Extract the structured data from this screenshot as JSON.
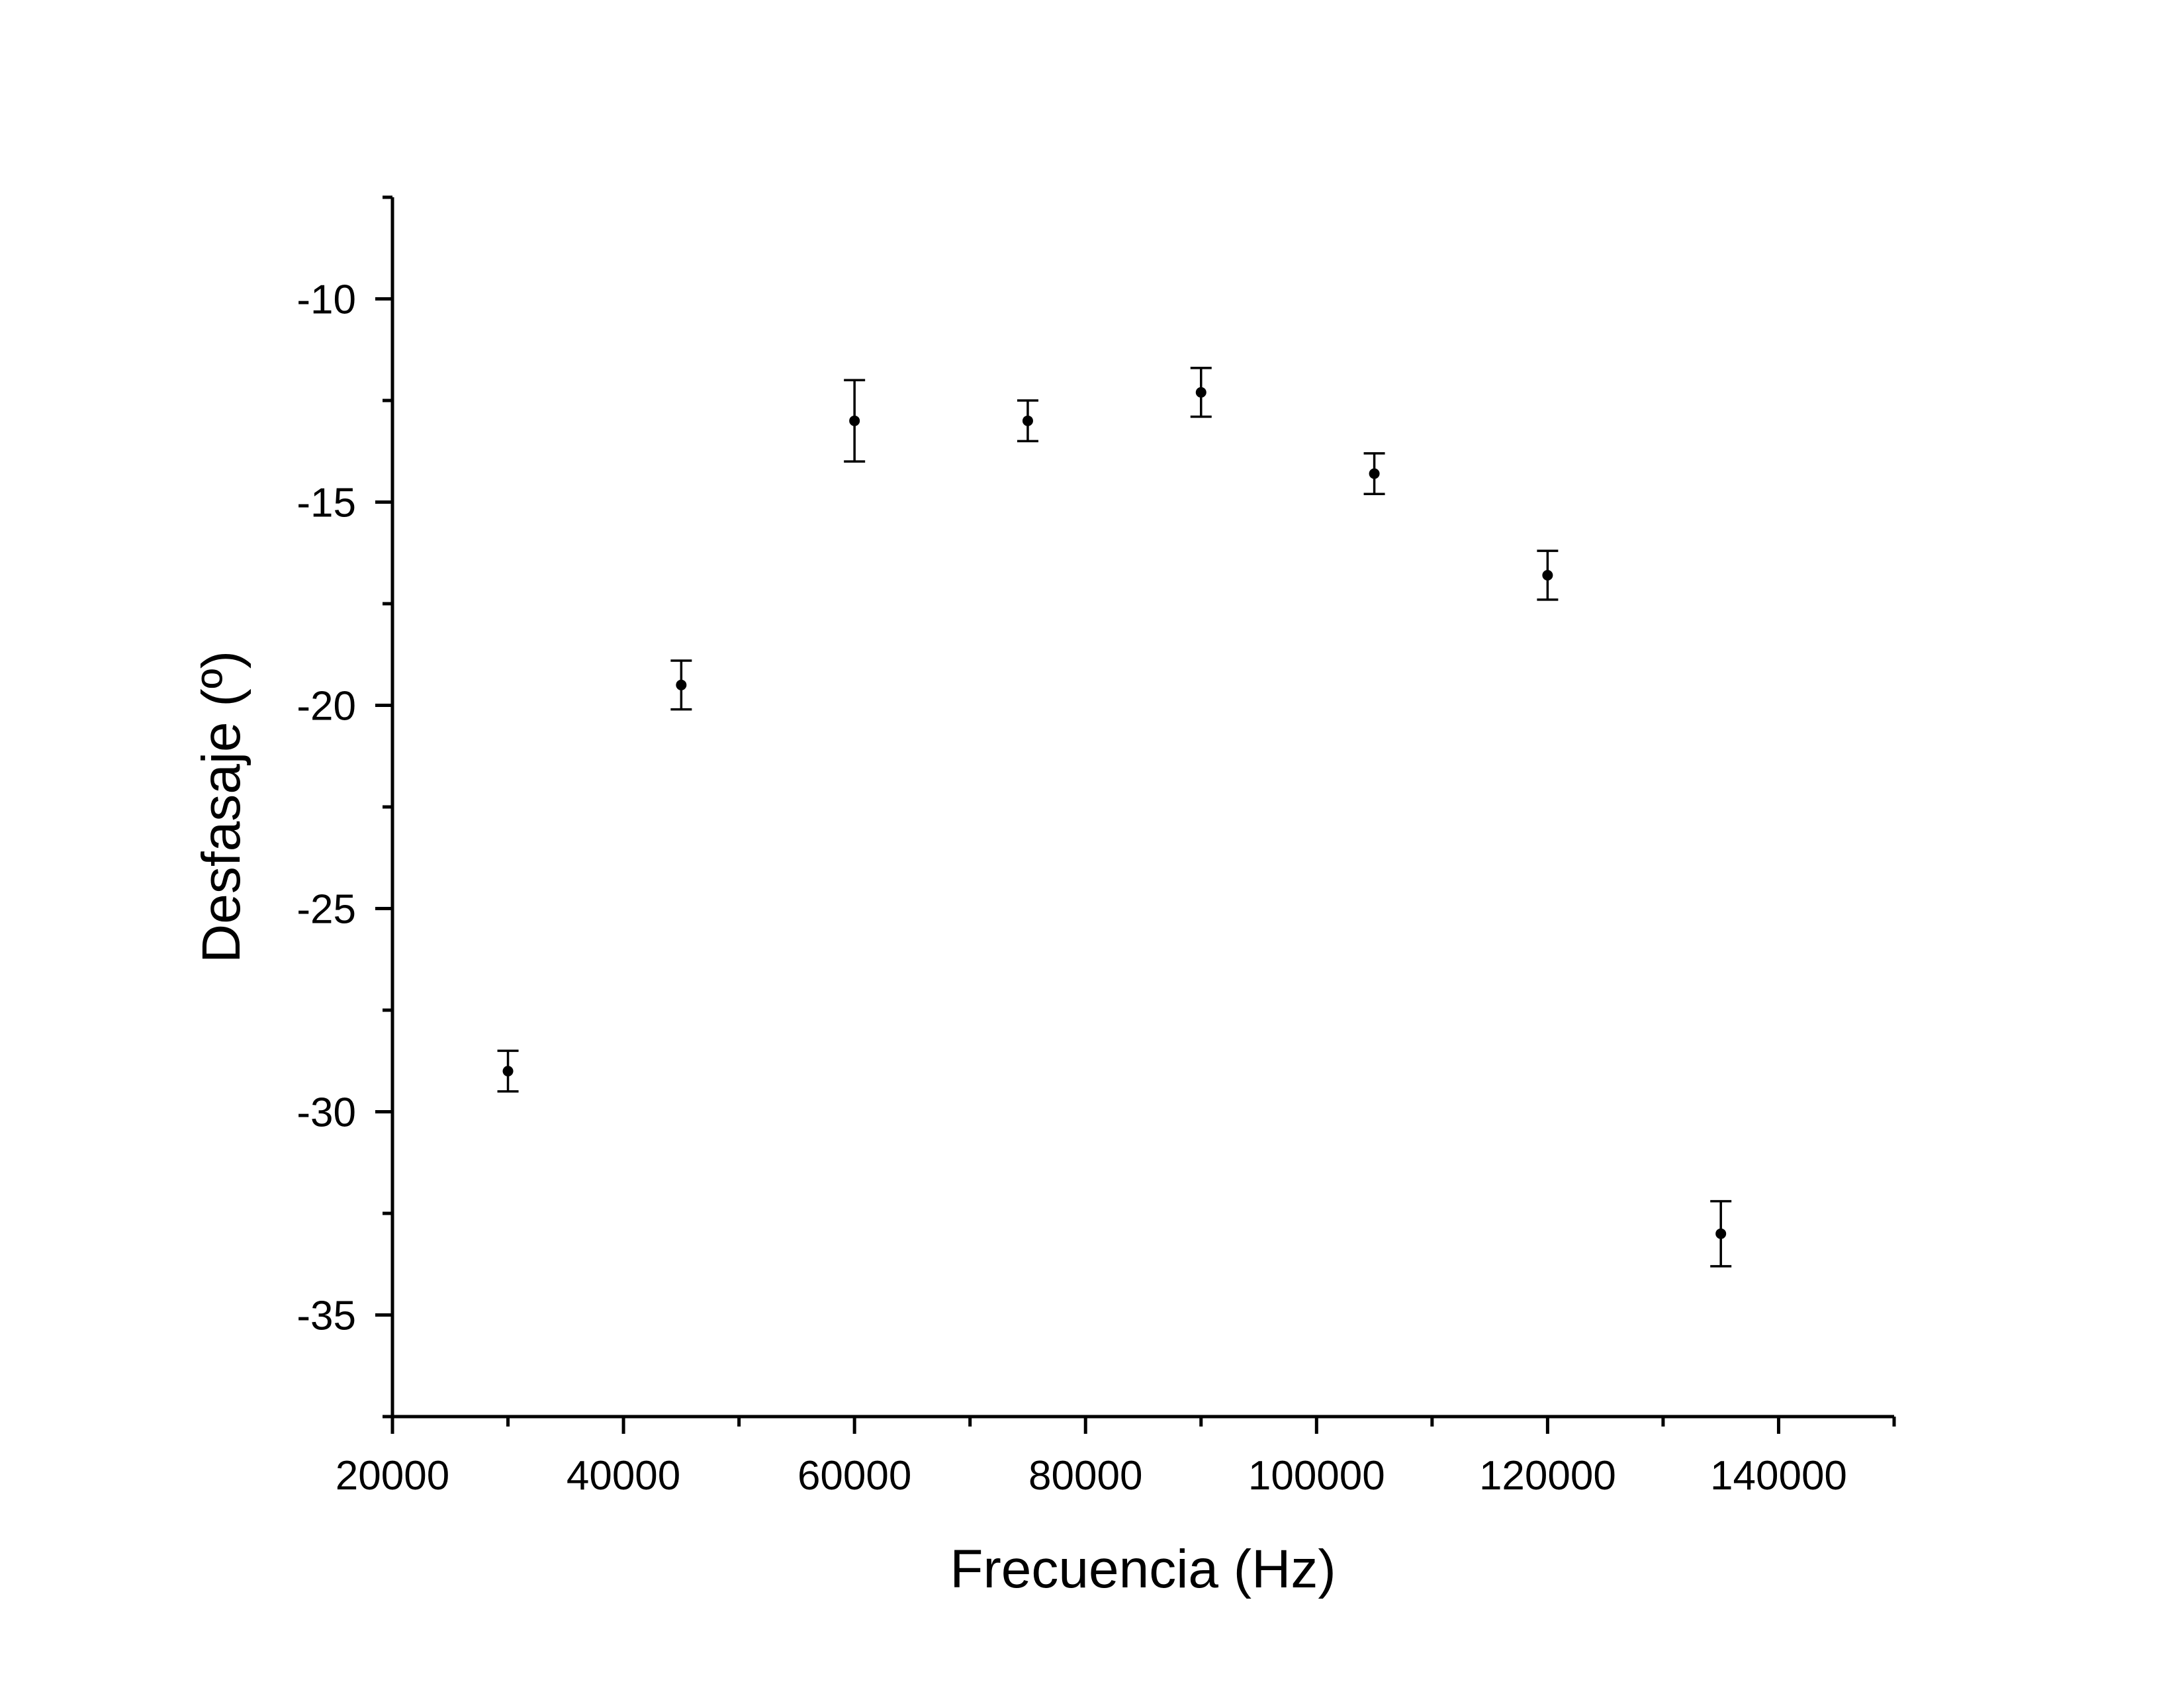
{
  "chart_data": {
    "type": "scatter",
    "title": "",
    "xlabel": "Frecuencia (Hz)",
    "ylabel": "Desfasaje (º)",
    "xlim": [
      20000,
      150000
    ],
    "ylim": [
      -37.5,
      -7.5
    ],
    "x_ticks": [
      20000,
      40000,
      60000,
      80000,
      100000,
      120000,
      140000
    ],
    "x_tick_labels": [
      "20000",
      "40000",
      "60000",
      "80000",
      "100000",
      "120000",
      "140000"
    ],
    "x_minor_ticks": [
      30000,
      50000,
      70000,
      90000,
      110000,
      130000,
      150000
    ],
    "y_ticks": [
      -10,
      -15,
      -20,
      -25,
      -30,
      -35
    ],
    "y_tick_labels": [
      "-10",
      "-15",
      "-20",
      "-25",
      "-30",
      "-35"
    ],
    "y_minor_ticks": [
      -7.5,
      -12.5,
      -17.5,
      -22.5,
      -27.5,
      -32.5,
      -37.5
    ],
    "grid": false,
    "legend": "none",
    "color": "#000000",
    "series": [
      {
        "x": [
          30000,
          45000,
          60000,
          75000,
          90000,
          105000,
          120000,
          135000
        ],
        "y": [
          -29.0,
          -19.5,
          -13.0,
          -13.0,
          -12.3,
          -14.3,
          -16.8,
          -33.0
        ],
        "yerr": [
          0.5,
          0.6,
          1.0,
          0.5,
          0.6,
          0.5,
          0.6,
          0.8
        ]
      }
    ]
  }
}
